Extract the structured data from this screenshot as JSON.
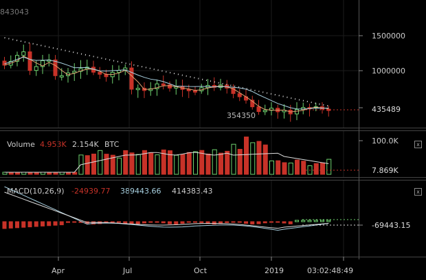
{
  "price_panel": {
    "top_label": "843043",
    "axis_ticks": [
      "1500000",
      "1000000"
    ],
    "current_price": "435489",
    "low_marker": "354350"
  },
  "volume_panel": {
    "indicator_name": "Volume",
    "value_a": "4.953K",
    "value_b": "2.154K",
    "unit": "BTC",
    "axis_top": "100.0K",
    "axis_current": "7.869K",
    "close_label": "x"
  },
  "macd_panel": {
    "indicator_name": "MACD(10,26,9)",
    "value_hist": "-24939.77",
    "value_macd": "389443.66",
    "value_signal": "414383.43",
    "axis_current": "-69443.15",
    "close_label": "x"
  },
  "time_axis": {
    "labels": [
      "Apr",
      "Jul",
      "Oct",
      "2019"
    ],
    "countdown": "03:02:48:49"
  },
  "colors": {
    "up": "#6fd36f",
    "down": "#c83228",
    "ma1": "#e0a070",
    "ma2": "#a8d0e0",
    "ma3": "#dddddd"
  }
}
